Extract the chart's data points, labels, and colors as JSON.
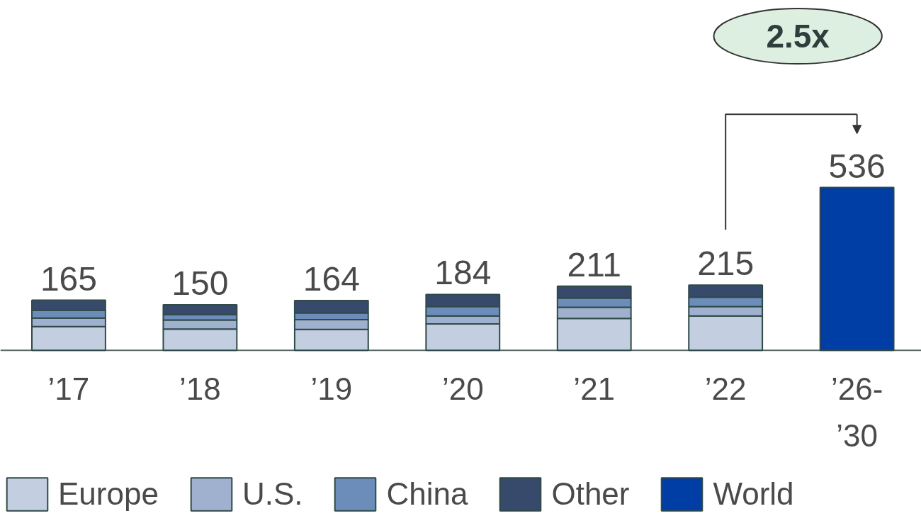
{
  "chart_data": {
    "type": "bar",
    "stacked": true,
    "categories": [
      "’17",
      "’18",
      "’19",
      "’20",
      "’21",
      "’22",
      "’26-’30"
    ],
    "series": [
      {
        "name": "Europe",
        "color": "#c3cfe0",
        "values": [
          78,
          70,
          69,
          87,
          105,
          113,
          null
        ]
      },
      {
        "name": "U.S.",
        "color": "#9fb1cf",
        "values": [
          28,
          30,
          32,
          26,
          37,
          31,
          null
        ]
      },
      {
        "name": "China",
        "color": "#6c8cba",
        "values": [
          26,
          18,
          22,
          31,
          30,
          31,
          null
        ]
      },
      {
        "name": "Other",
        "color": "#374a6b",
        "values": [
          33,
          32,
          41,
          40,
          39,
          40,
          null
        ]
      },
      {
        "name": "World",
        "color": "#003da5",
        "values": [
          null,
          null,
          null,
          null,
          null,
          null,
          536
        ],
        "value_labels": [
          null,
          null,
          null,
          null,
          null,
          null,
          "536"
        ]
      }
    ],
    "totals": [
      "165",
      "150",
      "164",
      "184",
      "211",
      "215",
      null
    ],
    "annotations": [
      "2.5x"
    ],
    "legend": "bottom",
    "grid": false
  }
}
